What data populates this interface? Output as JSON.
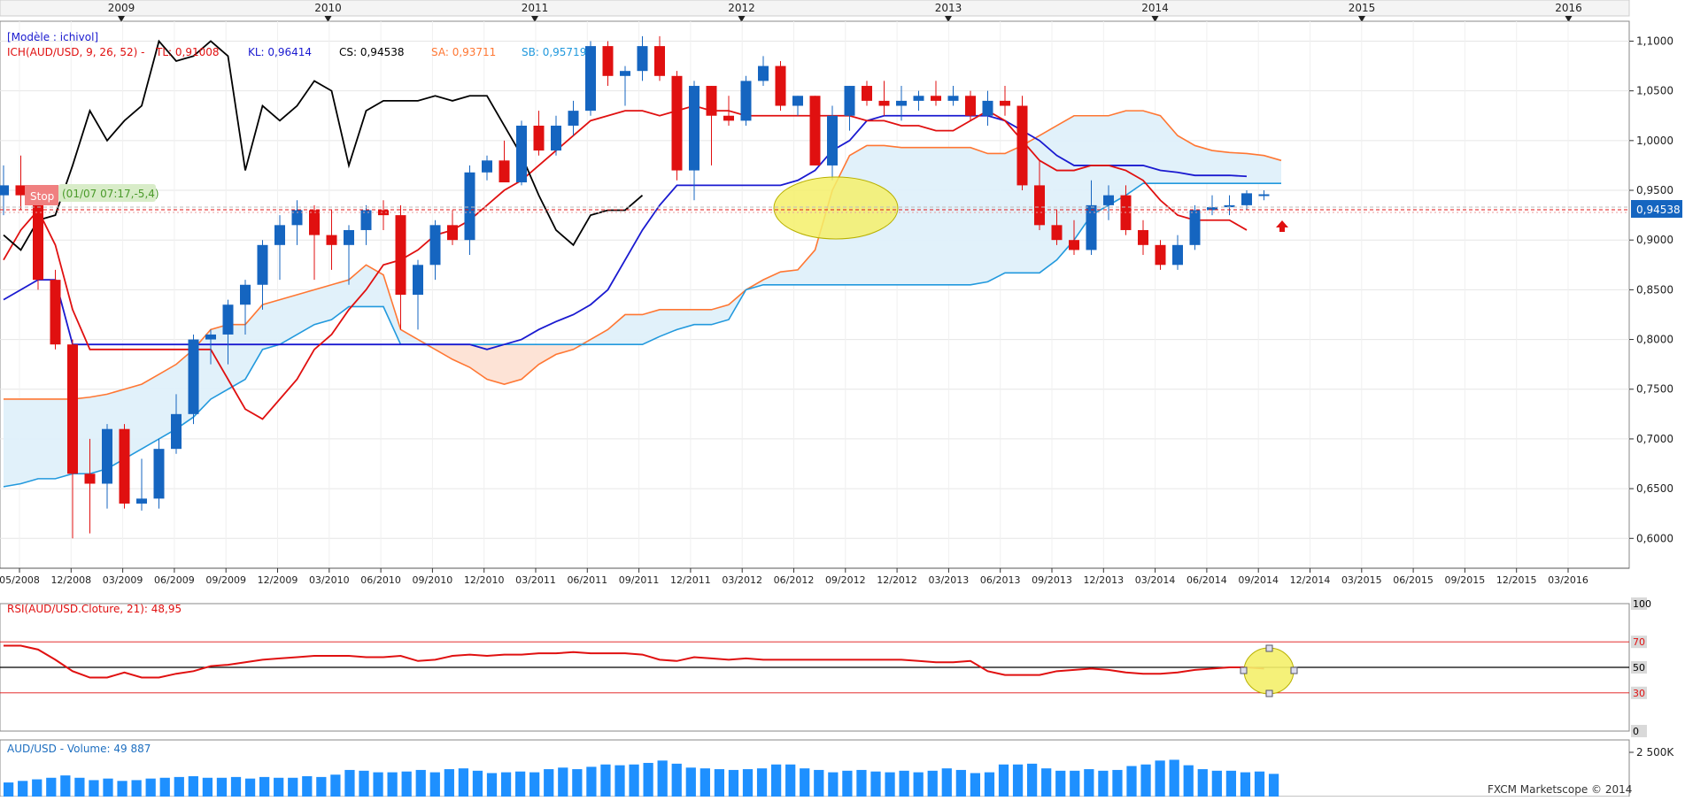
{
  "top_years": [
    "2009",
    "2010",
    "2011",
    "2012",
    "2013",
    "2014",
    "2015",
    "2016"
  ],
  "model_label": "[Modèle : ichivol]",
  "legend": {
    "ich": "ICH(AUD/USD, 9, 26, 52) -",
    "tl": "TL: 0,91008",
    "kl": "KL: 0,96414",
    "cs": "CS: 0,94538",
    "sa": "SA: 0,93711",
    "sb": "SB: 0,95719"
  },
  "stop_label": "Stop",
  "stop_note": "(01/07 07:17,-5,4)",
  "price_badge": "0,94538",
  "rsi_title": "RSI(AUD/USD.Cloture, 21): 48,95",
  "volume_title": "AUD/USD - Volume: 49 887",
  "watermark": "FXCM Marketscope © 2014",
  "colors": {
    "up": "#1565c0",
    "down": "#e01010",
    "tenkan": "#e01010",
    "kijun": "#1a1ad0",
    "chikou": "#000000",
    "ssa": "#ff7733",
    "ssb": "#2299dd",
    "cloud": "#dff0fa",
    "cloud_bear": "#fde3d6",
    "rsi": "#e01010",
    "volume": "#1e90ff",
    "highlight": "#f4f06a"
  },
  "chart_data": [
    {
      "type": "candlestick",
      "title": "ICH(AUD/USD, 9, 26, 52)",
      "x_ticks": [
        "05/2008",
        "12/2008",
        "03/2009",
        "06/2009",
        "09/2009",
        "12/2009",
        "03/2010",
        "06/2010",
        "09/2010",
        "12/2010",
        "03/2011",
        "06/2011",
        "09/2011",
        "12/2011",
        "03/2012",
        "06/2012",
        "09/2012",
        "12/2012",
        "03/2013",
        "06/2013",
        "09/2013",
        "12/2013",
        "03/2014",
        "06/2014",
        "09/2014",
        "12/2014",
        "03/2015",
        "06/2015",
        "09/2015",
        "12/2015",
        "03/2016"
      ],
      "y_ticks": [
        "1,1000",
        "1,0500",
        "1,0000",
        "0,9500",
        "0,9000",
        "0,8500",
        "0,8000",
        "0,7500",
        "0,7000",
        "0,6500",
        "0,6000"
      ],
      "ylim": [
        0.57,
        1.12
      ],
      "candles": [
        {
          "o": 0.945,
          "h": 0.975,
          "l": 0.925,
          "c": 0.955
        },
        {
          "o": 0.955,
          "h": 0.985,
          "l": 0.93,
          "c": 0.945
        },
        {
          "o": 0.945,
          "h": 0.95,
          "l": 0.85,
          "c": 0.86
        },
        {
          "o": 0.86,
          "h": 0.87,
          "l": 0.79,
          "c": 0.795
        },
        {
          "o": 0.795,
          "h": 0.8,
          "l": 0.6,
          "c": 0.665
        },
        {
          "o": 0.665,
          "h": 0.7,
          "l": 0.605,
          "c": 0.655
        },
        {
          "o": 0.655,
          "h": 0.715,
          "l": 0.63,
          "c": 0.71
        },
        {
          "o": 0.71,
          "h": 0.715,
          "l": 0.63,
          "c": 0.635
        },
        {
          "o": 0.635,
          "h": 0.68,
          "l": 0.628,
          "c": 0.64
        },
        {
          "o": 0.64,
          "h": 0.7,
          "l": 0.63,
          "c": 0.69
        },
        {
          "o": 0.69,
          "h": 0.745,
          "l": 0.685,
          "c": 0.725
        },
        {
          "o": 0.725,
          "h": 0.805,
          "l": 0.715,
          "c": 0.8
        },
        {
          "o": 0.8,
          "h": 0.81,
          "l": 0.775,
          "c": 0.805
        },
        {
          "o": 0.805,
          "h": 0.84,
          "l": 0.775,
          "c": 0.835
        },
        {
          "o": 0.835,
          "h": 0.86,
          "l": 0.805,
          "c": 0.855
        },
        {
          "o": 0.855,
          "h": 0.9,
          "l": 0.83,
          "c": 0.895
        },
        {
          "o": 0.895,
          "h": 0.925,
          "l": 0.86,
          "c": 0.915
        },
        {
          "o": 0.915,
          "h": 0.94,
          "l": 0.895,
          "c": 0.93
        },
        {
          "o": 0.93,
          "h": 0.935,
          "l": 0.86,
          "c": 0.905
        },
        {
          "o": 0.905,
          "h": 0.93,
          "l": 0.87,
          "c": 0.895
        },
        {
          "o": 0.895,
          "h": 0.915,
          "l": 0.855,
          "c": 0.91
        },
        {
          "o": 0.91,
          "h": 0.935,
          "l": 0.895,
          "c": 0.93
        },
        {
          "o": 0.93,
          "h": 0.94,
          "l": 0.91,
          "c": 0.925
        },
        {
          "o": 0.925,
          "h": 0.935,
          "l": 0.81,
          "c": 0.845
        },
        {
          "o": 0.845,
          "h": 0.88,
          "l": 0.81,
          "c": 0.875
        },
        {
          "o": 0.875,
          "h": 0.92,
          "l": 0.86,
          "c": 0.915
        },
        {
          "o": 0.915,
          "h": 0.93,
          "l": 0.895,
          "c": 0.9
        },
        {
          "o": 0.9,
          "h": 0.975,
          "l": 0.885,
          "c": 0.968
        },
        {
          "o": 0.968,
          "h": 0.985,
          "l": 0.96,
          "c": 0.98
        },
        {
          "o": 0.98,
          "h": 1.0,
          "l": 0.96,
          "c": 0.958
        },
        {
          "o": 0.958,
          "h": 1.02,
          "l": 0.955,
          "c": 1.015
        },
        {
          "o": 1.015,
          "h": 1.03,
          "l": 0.985,
          "c": 0.99
        },
        {
          "o": 0.99,
          "h": 1.025,
          "l": 0.985,
          "c": 1.015
        },
        {
          "o": 1.015,
          "h": 1.04,
          "l": 1.005,
          "c": 1.03
        },
        {
          "o": 1.03,
          "h": 1.1,
          "l": 1.025,
          "c": 1.095
        },
        {
          "o": 1.095,
          "h": 1.1,
          "l": 1.055,
          "c": 1.065
        },
        {
          "o": 1.065,
          "h": 1.075,
          "l": 1.035,
          "c": 1.07
        },
        {
          "o": 1.07,
          "h": 1.105,
          "l": 1.06,
          "c": 1.095
        },
        {
          "o": 1.095,
          "h": 1.105,
          "l": 1.06,
          "c": 1.065
        },
        {
          "o": 1.065,
          "h": 1.07,
          "l": 0.96,
          "c": 0.97
        },
        {
          "o": 0.97,
          "h": 1.06,
          "l": 0.94,
          "c": 1.055
        },
        {
          "o": 1.055,
          "h": 1.055,
          "l": 0.975,
          "c": 1.025
        },
        {
          "o": 1.025,
          "h": 1.045,
          "l": 1.015,
          "c": 1.02
        },
        {
          "o": 1.02,
          "h": 1.065,
          "l": 1.015,
          "c": 1.06
        },
        {
          "o": 1.06,
          "h": 1.085,
          "l": 1.055,
          "c": 1.075
        },
        {
          "o": 1.075,
          "h": 1.08,
          "l": 1.03,
          "c": 1.035
        },
        {
          "o": 1.035,
          "h": 1.045,
          "l": 1.025,
          "c": 1.045
        },
        {
          "o": 1.045,
          "h": 1.045,
          "l": 0.975,
          "c": 0.975
        },
        {
          "o": 0.975,
          "h": 1.035,
          "l": 0.96,
          "c": 1.025
        },
        {
          "o": 1.025,
          "h": 1.055,
          "l": 1.01,
          "c": 1.055
        },
        {
          "o": 1.055,
          "h": 1.06,
          "l": 1.035,
          "c": 1.04
        },
        {
          "o": 1.04,
          "h": 1.06,
          "l": 1.025,
          "c": 1.035
        },
        {
          "o": 1.035,
          "h": 1.055,
          "l": 1.02,
          "c": 1.04
        },
        {
          "o": 1.04,
          "h": 1.05,
          "l": 1.03,
          "c": 1.045
        },
        {
          "o": 1.045,
          "h": 1.06,
          "l": 1.035,
          "c": 1.04
        },
        {
          "o": 1.04,
          "h": 1.055,
          "l": 1.035,
          "c": 1.045
        },
        {
          "o": 1.045,
          "h": 1.05,
          "l": 1.02,
          "c": 1.025
        },
        {
          "o": 1.025,
          "h": 1.05,
          "l": 1.015,
          "c": 1.04
        },
        {
          "o": 1.04,
          "h": 1.055,
          "l": 1.025,
          "c": 1.035
        },
        {
          "o": 1.035,
          "h": 1.045,
          "l": 0.95,
          "c": 0.955
        },
        {
          "o": 0.955,
          "h": 0.98,
          "l": 0.91,
          "c": 0.915
        },
        {
          "o": 0.915,
          "h": 0.93,
          "l": 0.895,
          "c": 0.9
        },
        {
          "o": 0.9,
          "h": 0.92,
          "l": 0.885,
          "c": 0.89
        },
        {
          "o": 0.89,
          "h": 0.96,
          "l": 0.885,
          "c": 0.935
        },
        {
          "o": 0.935,
          "h": 0.955,
          "l": 0.92,
          "c": 0.945
        },
        {
          "o": 0.945,
          "h": 0.955,
          "l": 0.905,
          "c": 0.91
        },
        {
          "o": 0.91,
          "h": 0.92,
          "l": 0.885,
          "c": 0.895
        },
        {
          "o": 0.895,
          "h": 0.9,
          "l": 0.87,
          "c": 0.875
        },
        {
          "o": 0.875,
          "h": 0.905,
          "l": 0.87,
          "c": 0.895
        },
        {
          "o": 0.895,
          "h": 0.935,
          "l": 0.89,
          "c": 0.93
        },
        {
          "o": 0.93,
          "h": 0.945,
          "l": 0.925,
          "c": 0.933
        },
        {
          "o": 0.933,
          "h": 0.945,
          "l": 0.925,
          "c": 0.935
        },
        {
          "o": 0.935,
          "h": 0.95,
          "l": 0.93,
          "c": 0.947
        },
        {
          "o": 0.945,
          "h": 0.95,
          "l": 0.94,
          "c": 0.946
        }
      ],
      "tenkan": [
        0.88,
        0.91,
        0.93,
        0.895,
        0.83,
        0.79,
        0.79,
        0.79,
        0.79,
        0.79,
        0.79,
        0.79,
        0.79,
        0.76,
        0.73,
        0.72,
        0.74,
        0.76,
        0.79,
        0.805,
        0.83,
        0.85,
        0.875,
        0.88,
        0.89,
        0.905,
        0.91,
        0.92,
        0.935,
        0.95,
        0.96,
        0.975,
        0.99,
        1.005,
        1.02,
        1.025,
        1.03,
        1.03,
        1.025,
        1.03,
        1.035,
        1.03,
        1.03,
        1.025,
        1.025,
        1.025,
        1.025,
        1.025,
        1.025,
        1.025,
        1.02,
        1.02,
        1.015,
        1.015,
        1.01,
        1.01,
        1.02,
        1.03,
        1.02,
        1.0,
        0.98,
        0.97,
        0.97,
        0.975,
        0.975,
        0.97,
        0.96,
        0.94,
        0.925,
        0.92,
        0.92,
        0.92,
        0.91
      ],
      "kijun": [
        0.84,
        0.85,
        0.86,
        0.86,
        0.795,
        0.795,
        0.795,
        0.795,
        0.795,
        0.795,
        0.795,
        0.795,
        0.795,
        0.795,
        0.795,
        0.795,
        0.795,
        0.795,
        0.795,
        0.795,
        0.795,
        0.795,
        0.795,
        0.795,
        0.795,
        0.795,
        0.795,
        0.795,
        0.79,
        0.795,
        0.8,
        0.81,
        0.818,
        0.825,
        0.835,
        0.85,
        0.88,
        0.91,
        0.935,
        0.955,
        0.955,
        0.955,
        0.955,
        0.955,
        0.955,
        0.955,
        0.96,
        0.97,
        0.99,
        1.0,
        1.02,
        1.025,
        1.025,
        1.025,
        1.025,
        1.025,
        1.025,
        1.025,
        1.02,
        1.01,
        1.0,
        0.985,
        0.975,
        0.975,
        0.975,
        0.975,
        0.975,
        0.97,
        0.968,
        0.965,
        0.965,
        0.965,
        0.964
      ],
      "chikou": [
        0.905,
        0.89,
        0.92,
        0.925,
        0.975,
        1.03,
        1.0,
        1.02,
        1.035,
        1.1,
        1.08,
        1.085,
        1.1,
        1.085,
        0.97,
        1.035,
        1.02,
        1.035,
        1.06,
        1.05,
        0.975,
        1.03,
        1.04,
        1.04,
        1.04,
        1.045,
        1.04,
        1.045,
        1.045,
        1.015,
        0.985,
        0.945,
        0.91,
        0.895,
        0.925,
        0.93,
        0.93,
        0.945
      ],
      "senkou_a": [
        0.74,
        0.74,
        0.74,
        0.74,
        0.74,
        0.742,
        0.745,
        0.75,
        0.755,
        0.765,
        0.775,
        0.79,
        0.81,
        0.815,
        0.815,
        0.835,
        0.84,
        0.845,
        0.85,
        0.855,
        0.86,
        0.875,
        0.865,
        0.81,
        0.8,
        0.79,
        0.78,
        0.772,
        0.76,
        0.755,
        0.76,
        0.775,
        0.785,
        0.79,
        0.8,
        0.81,
        0.825,
        0.825,
        0.83,
        0.83,
        0.83,
        0.83,
        0.835,
        0.85,
        0.86,
        0.868,
        0.87,
        0.89,
        0.95,
        0.985,
        0.995,
        0.995,
        0.993,
        0.993,
        0.993,
        0.993,
        0.993,
        0.987,
        0.987,
        0.995,
        1.005,
        1.015,
        1.025,
        1.025,
        1.025,
        1.03,
        1.03,
        1.025,
        1.005,
        0.995,
        0.99,
        0.988,
        0.987,
        0.985,
        0.98
      ],
      "senkou_b": [
        0.652,
        0.655,
        0.66,
        0.66,
        0.665,
        0.665,
        0.67,
        0.68,
        0.69,
        0.7,
        0.71,
        0.722,
        0.74,
        0.75,
        0.76,
        0.79,
        0.795,
        0.805,
        0.815,
        0.82,
        0.833,
        0.833,
        0.833,
        0.795,
        0.795,
        0.795,
        0.795,
        0.795,
        0.795,
        0.795,
        0.795,
        0.795,
        0.795,
        0.795,
        0.795,
        0.795,
        0.795,
        0.795,
        0.803,
        0.81,
        0.815,
        0.815,
        0.82,
        0.85,
        0.855,
        0.855,
        0.855,
        0.855,
        0.855,
        0.855,
        0.855,
        0.855,
        0.855,
        0.855,
        0.855,
        0.855,
        0.855,
        0.858,
        0.867,
        0.867,
        0.867,
        0.88,
        0.9,
        0.925,
        0.935,
        0.945,
        0.957,
        0.957,
        0.957,
        0.957,
        0.957,
        0.957,
        0.957,
        0.957,
        0.957
      ],
      "last_close": 0.94538,
      "highlight_note": "ellipse near 0,945 around 06/2012"
    },
    {
      "type": "line",
      "title": "RSI(AUD/USD.Cloture, 21)",
      "y_ticks": [
        "100",
        "70",
        "50",
        "30",
        "0"
      ],
      "ylim": [
        0,
        100
      ],
      "levels": [
        70,
        50,
        30
      ],
      "values": [
        67,
        67,
        64,
        56,
        47,
        42,
        42,
        46,
        42,
        42,
        45,
        47,
        51,
        52,
        54,
        56,
        57,
        58,
        59,
        59,
        59,
        58,
        58,
        59,
        55,
        56,
        59,
        60,
        59,
        60,
        60,
        61,
        61,
        62,
        61,
        61,
        61,
        60,
        56,
        55,
        58,
        57,
        56,
        57,
        56,
        56,
        56,
        56,
        56,
        56,
        56,
        56,
        56,
        55,
        54,
        54,
        55,
        47,
        44,
        44,
        44,
        47,
        48,
        49,
        48,
        46,
        45,
        45,
        46,
        48,
        49,
        50,
        50,
        49
      ]
    },
    {
      "type": "bar",
      "title": "AUD/USD - Volume",
      "y_ticks": [
        "2 500K"
      ],
      "values": [
        900,
        1000,
        1100,
        1200,
        1350,
        1200,
        1050,
        1150,
        1000,
        1050,
        1150,
        1200,
        1250,
        1300,
        1200,
        1200,
        1250,
        1150,
        1250,
        1200,
        1200,
        1300,
        1250,
        1400,
        1700,
        1650,
        1550,
        1550,
        1600,
        1700,
        1550,
        1750,
        1800,
        1650,
        1500,
        1550,
        1600,
        1550,
        1750,
        1850,
        1750,
        1900,
        2050,
        2000,
        2050,
        2150,
        2300,
        2100,
        1850,
        1800,
        1750,
        1700,
        1750,
        1800,
        2050,
        2050,
        1800,
        1700,
        1550,
        1650,
        1700,
        1600,
        1550,
        1650,
        1550,
        1650,
        1800,
        1700,
        1500,
        1550,
        2050,
        2050,
        2100,
        1800,
        1650,
        1650,
        1750,
        1650,
        1700,
        1950,
        2050,
        2300,
        2350,
        2000,
        1750,
        1650,
        1650,
        1550,
        1600,
        1450
      ]
    }
  ]
}
